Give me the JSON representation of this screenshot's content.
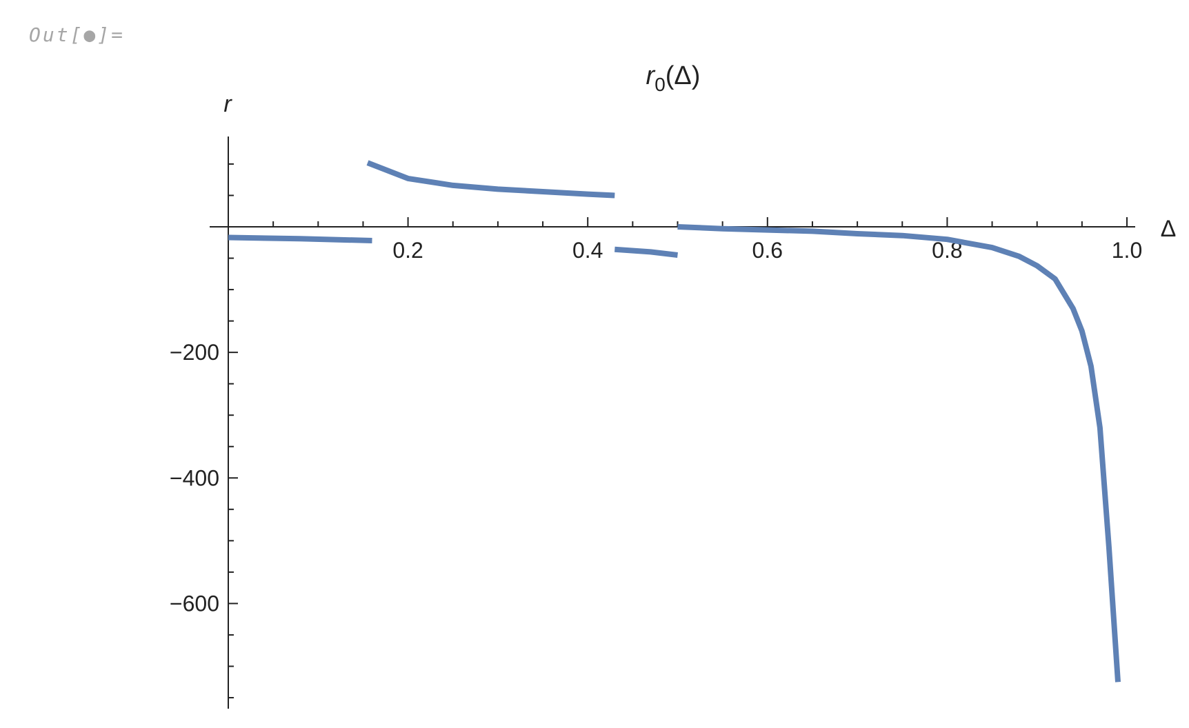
{
  "cell": {
    "out_label": "Out[●]="
  },
  "chart_data": {
    "type": "line",
    "title": "r0(Δ)",
    "title_main": "r",
    "title_sub": "0",
    "title_arg": "(Δ)",
    "xlabel": "Δ",
    "ylabel": "r",
    "xlim": [
      0,
      1.02
    ],
    "ylim": [
      -770,
      145
    ],
    "x_ticks": [
      0.2,
      0.4,
      0.6,
      0.8,
      1.0
    ],
    "x_tick_labels": [
      "0.2",
      "0.4",
      "0.6",
      "0.8",
      "1.0"
    ],
    "y_ticks": [
      -200,
      -400,
      -600
    ],
    "y_tick_labels": [
      "−200",
      "−400",
      "−600"
    ],
    "line_color": "#5e81b5",
    "series": [
      {
        "x": [
          0.0,
          0.08,
          0.16
        ],
        "y": [
          -17,
          -19,
          -22
        ]
      },
      {
        "x": [
          0.155,
          0.2,
          0.25,
          0.3,
          0.35,
          0.4,
          0.43
        ],
        "y": [
          102,
          77,
          66,
          60,
          56,
          52,
          50
        ]
      },
      {
        "x": [
          0.43,
          0.47,
          0.5
        ],
        "y": [
          -36,
          -40,
          -45
        ]
      },
      {
        "x": [
          0.5,
          0.55,
          0.6,
          0.65,
          0.7,
          0.75,
          0.8,
          0.85,
          0.88,
          0.9,
          0.92,
          0.94,
          0.95,
          0.96,
          0.97,
          0.98,
          0.99
        ],
        "y": [
          0,
          -3,
          -5,
          -7,
          -11,
          -14,
          -20,
          -33,
          -47,
          -62,
          -83,
          -130,
          -166,
          -222,
          -320,
          -510,
          -725
        ]
      }
    ]
  }
}
